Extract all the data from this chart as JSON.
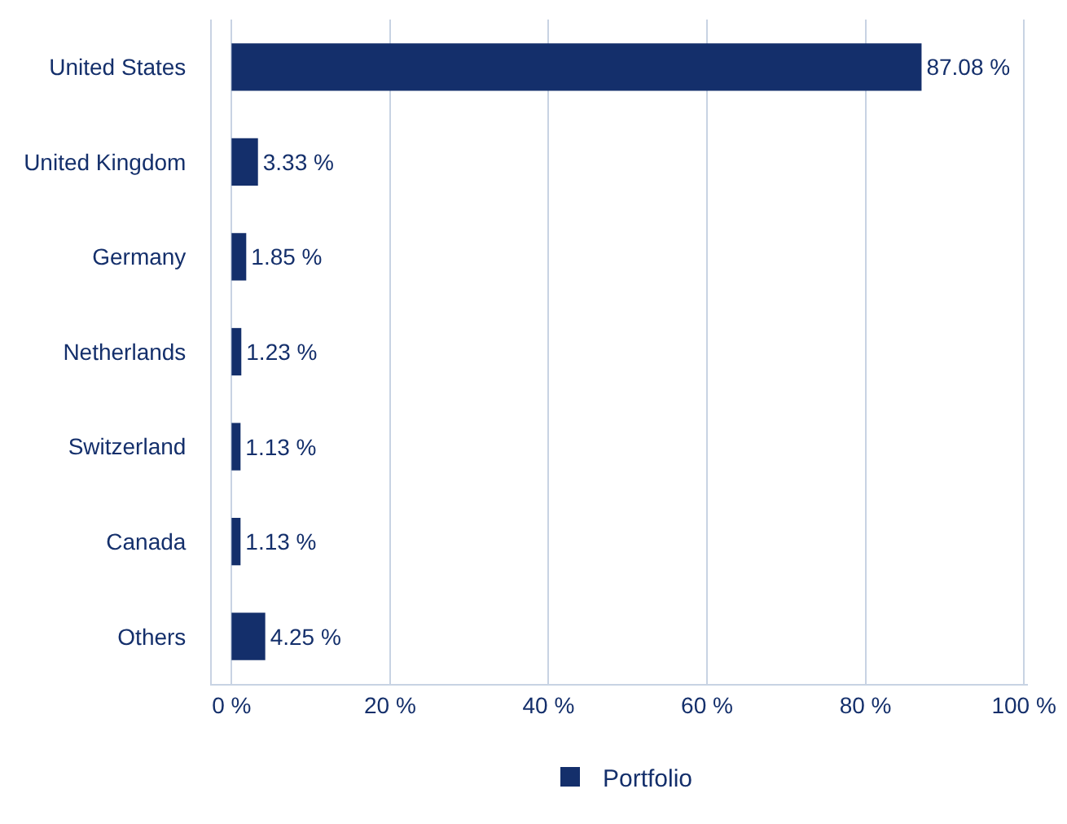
{
  "chart_data": {
    "type": "bar",
    "orientation": "horizontal",
    "categories": [
      "United States",
      "United Kingdom",
      "Germany",
      "Netherlands",
      "Switzerland",
      "Canada",
      "Others"
    ],
    "series": [
      {
        "name": "Portfolio",
        "color": "#142f6b",
        "values": [
          87.08,
          3.33,
          1.85,
          1.23,
          1.13,
          1.13,
          4.25
        ],
        "value_labels": [
          "87.08 %",
          "3.33 %",
          "1.85 %",
          "1.23 %",
          "1.13 %",
          "1.13 %",
          "4.25 %"
        ]
      }
    ],
    "xlim": [
      -2.5,
      100.5
    ],
    "xticks": [
      {
        "value": 0,
        "label": "0 %"
      },
      {
        "value": 20,
        "label": "20 %"
      },
      {
        "value": 40,
        "label": "40 %"
      },
      {
        "value": 60,
        "label": "60 %"
      },
      {
        "value": 80,
        "label": "80 %"
      },
      {
        "value": 100,
        "label": "100 %"
      }
    ],
    "grid": "x",
    "legend": "bottom"
  }
}
